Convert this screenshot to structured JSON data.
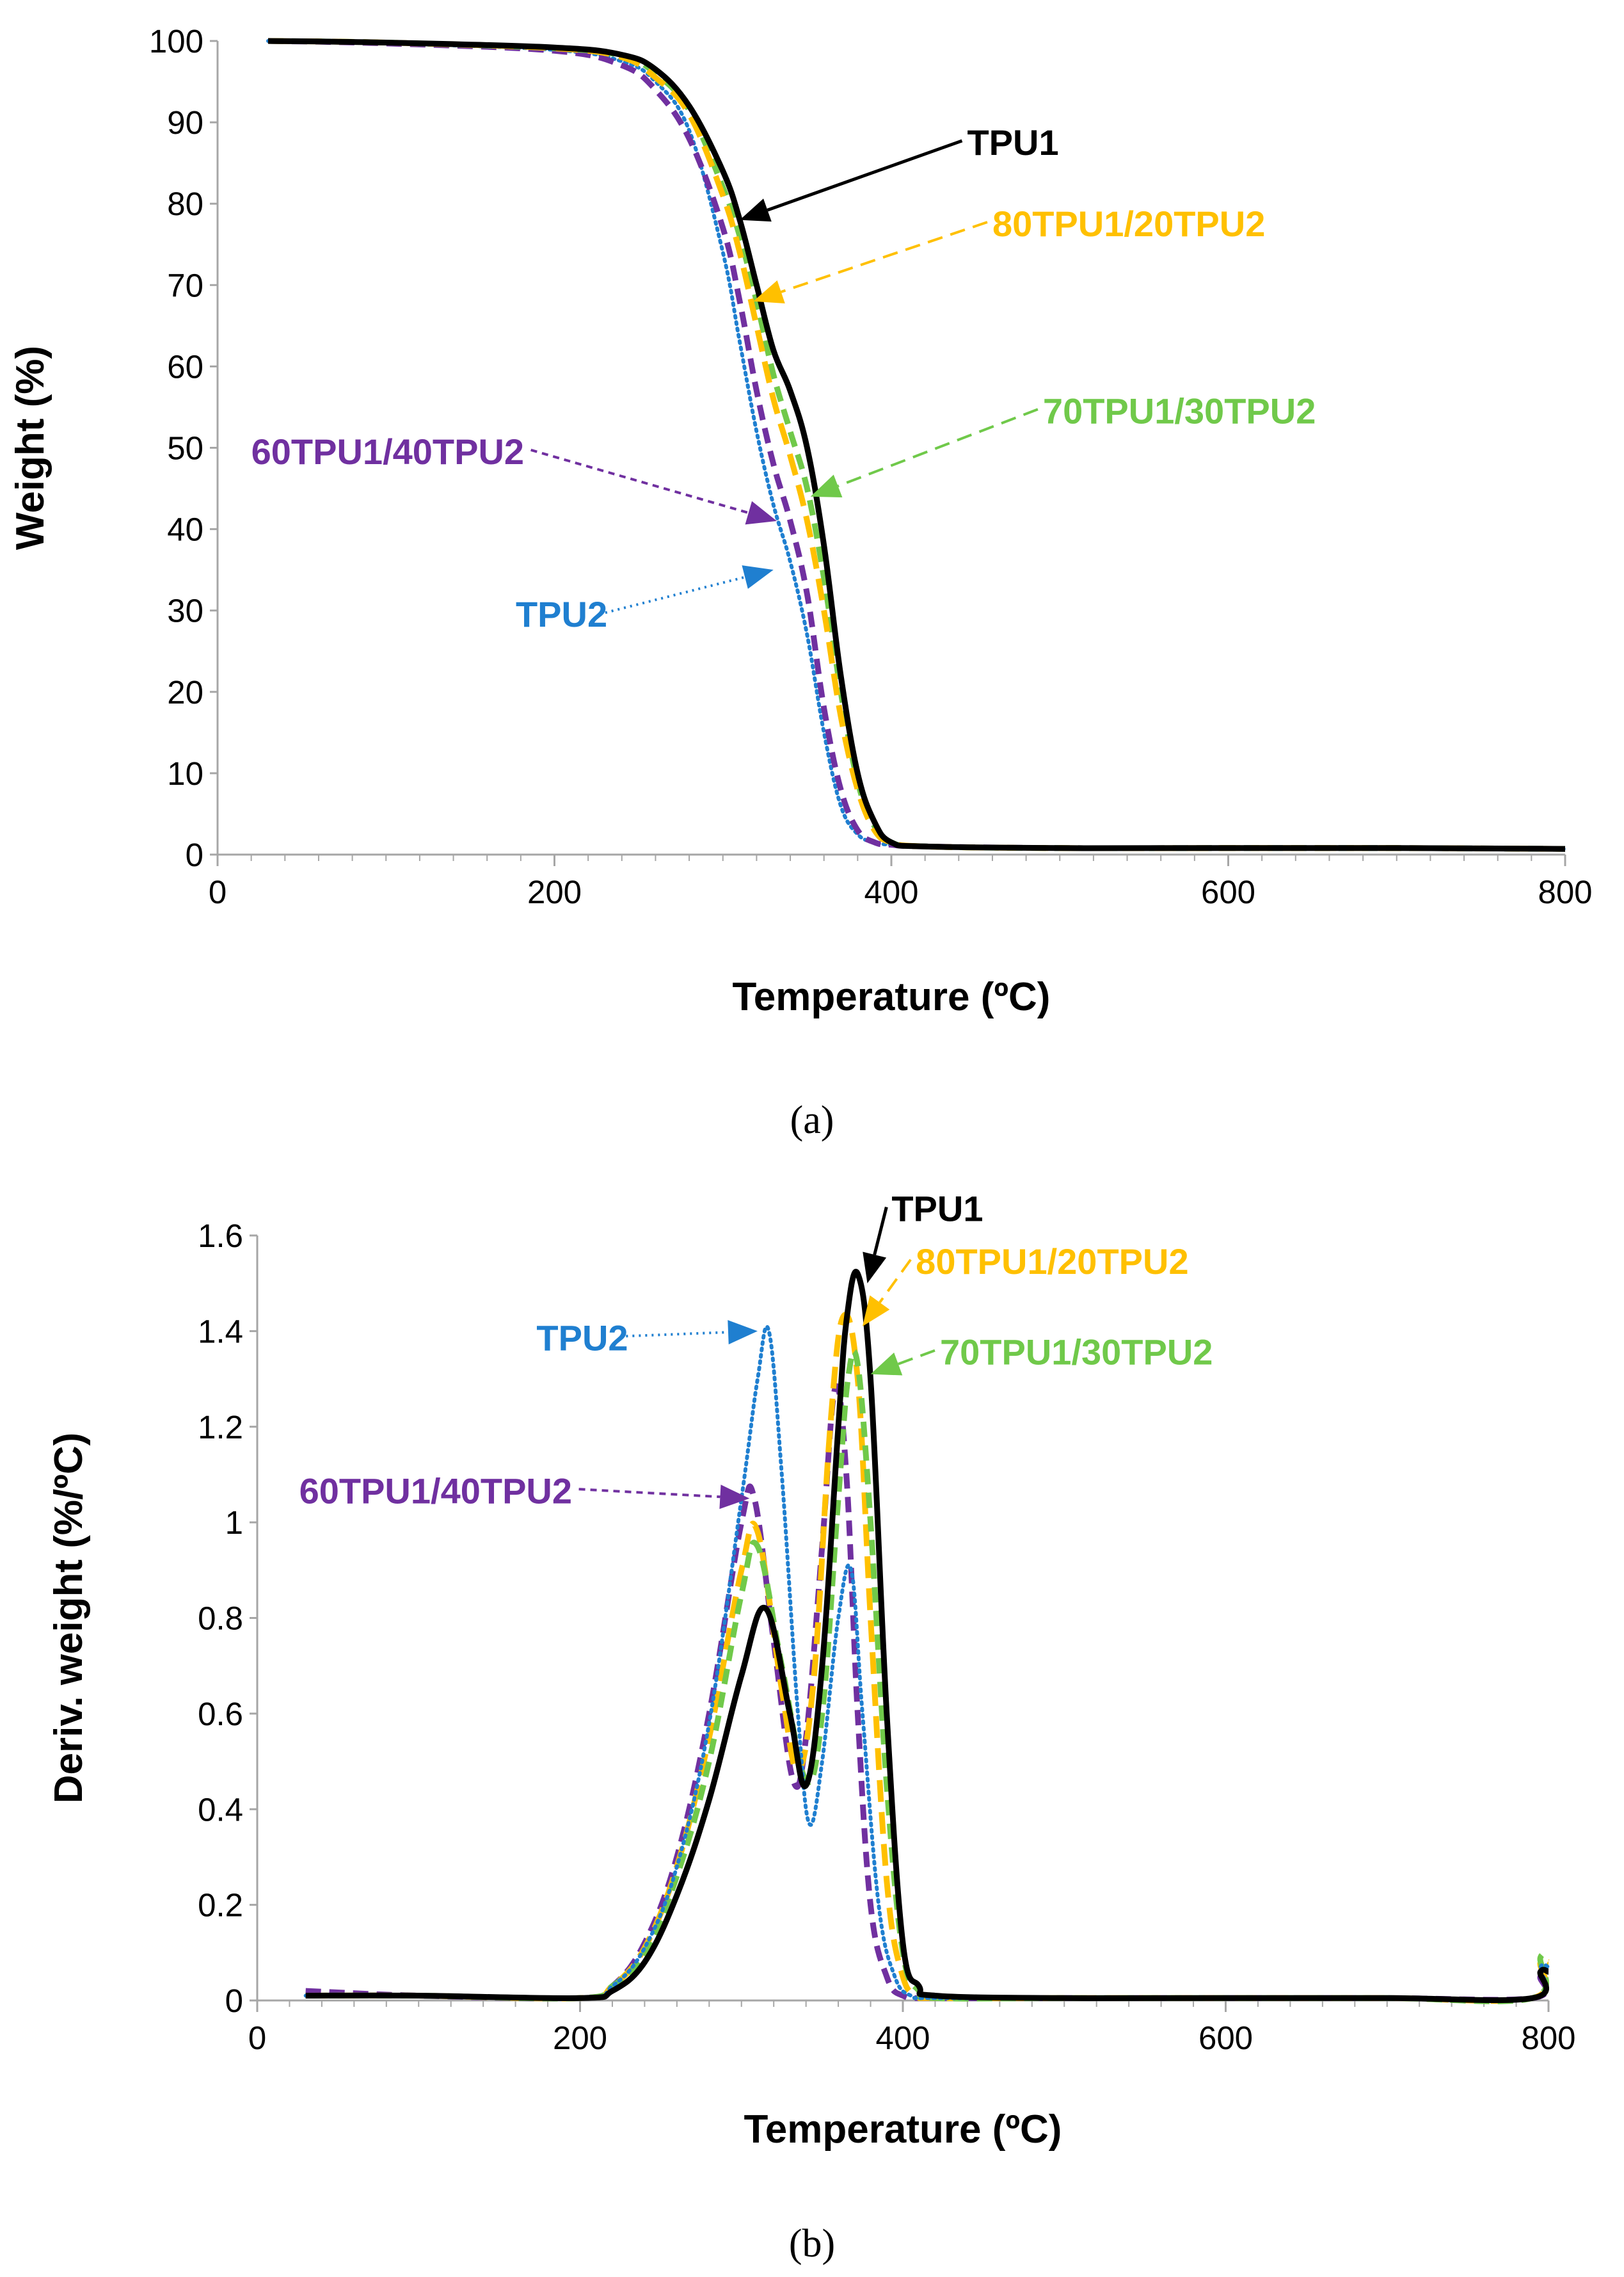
{
  "colors": {
    "TPU1": "#000000",
    "80TPU1/20TPU2": "#FFC000",
    "70TPU1/30TPU2": "#70C94A",
    "60TPU1/40TPU2": "#7030A0",
    "TPU2": "#1F7FD0",
    "axis": "#a6a6a6"
  },
  "chart_data": [
    {
      "type": "line",
      "panel": "(a)",
      "caption": "(a)",
      "xlabel": "Temperature (ºC)",
      "ylabel": "Weight (%)",
      "xlim": [
        0,
        800
      ],
      "ylim": [
        0,
        100
      ],
      "xticks": [
        0,
        200,
        400,
        600,
        800
      ],
      "yticks": [
        0,
        10,
        20,
        30,
        40,
        50,
        60,
        70,
        80,
        90,
        100
      ],
      "grid": false,
      "series": [
        {
          "name": "TPU1",
          "dash": "solid",
          "x": [
            30,
            100,
            200,
            240,
            260,
            280,
            300,
            310,
            320,
            330,
            340,
            350,
            360,
            370,
            380,
            390,
            400,
            420,
            500,
            600,
            700,
            800
          ],
          "y": [
            100,
            99.8,
            99.2,
            98.3,
            96.5,
            92,
            84,
            78,
            70,
            62,
            57,
            50,
            38,
            22,
            10,
            4,
            1.5,
            1.0,
            0.8,
            0.8,
            0.8,
            0.7
          ]
        },
        {
          "name": "80TPU1/20TPU2",
          "dash": "longdash",
          "x": [
            30,
            100,
            200,
            240,
            260,
            280,
            300,
            310,
            320,
            330,
            340,
            350,
            360,
            370,
            380,
            390,
            400,
            420,
            500,
            600,
            700,
            800
          ],
          "y": [
            100,
            99.8,
            99.1,
            98,
            95.5,
            91,
            81,
            74,
            65,
            56,
            49,
            41,
            30,
            17,
            8,
            3,
            1.5,
            1.0,
            0.8,
            0.8,
            0.8,
            0.7
          ]
        },
        {
          "name": "70TPU1/30TPU2",
          "dash": "dash",
          "x": [
            30,
            100,
            200,
            240,
            260,
            280,
            300,
            310,
            320,
            330,
            340,
            350,
            360,
            370,
            380,
            390,
            400,
            420,
            500,
            600,
            700,
            800
          ],
          "y": [
            100,
            99.8,
            99.1,
            98.2,
            96,
            91.5,
            82,
            76,
            68,
            59,
            52,
            45,
            34,
            20,
            9,
            3.5,
            1.5,
            1.0,
            0.8,
            0.8,
            0.8,
            0.7
          ]
        },
        {
          "name": "60TPU1/40TPU2",
          "dash": "dash",
          "x": [
            30,
            100,
            200,
            240,
            260,
            280,
            300,
            310,
            320,
            330,
            340,
            350,
            360,
            370,
            380,
            390,
            400,
            420,
            500,
            600,
            700,
            800
          ],
          "y": [
            100,
            99.7,
            98.8,
            97,
            94,
            88,
            77,
            68,
            57,
            48,
            41,
            32,
            18,
            8,
            3,
            1.5,
            1.2,
            1.0,
            0.8,
            0.8,
            0.8,
            0.7
          ]
        },
        {
          "name": "TPU2",
          "dash": "dot",
          "x": [
            30,
            100,
            200,
            240,
            260,
            280,
            300,
            310,
            320,
            330,
            340,
            350,
            360,
            370,
            380,
            390,
            400,
            420,
            500,
            600,
            700,
            800
          ],
          "y": [
            100,
            99.7,
            98.9,
            97.5,
            95,
            89,
            74,
            63,
            52,
            43,
            36,
            27,
            15,
            6,
            2.5,
            1.5,
            1.2,
            1.0,
            0.8,
            0.8,
            0.8,
            0.7
          ]
        }
      ],
      "annotations": [
        {
          "series": "TPU1",
          "text": "TPU1",
          "label_at": [
            445,
            86
          ],
          "point": [
            310,
            78
          ],
          "line": "solid"
        },
        {
          "series": "80TPU1/20TPU2",
          "text": "80TPU1/20TPU2",
          "label_at": [
            460,
            76
          ],
          "point": [
            318,
            68
          ],
          "line": "dash"
        },
        {
          "series": "70TPU1/30TPU2",
          "text": "70TPU1/30TPU2",
          "label_at": [
            490,
            53
          ],
          "point": [
            352,
            44
          ],
          "line": "dash"
        },
        {
          "series": "60TPU1/40TPU2",
          "text": "60TPU1/40TPU2",
          "label_at": [
            20,
            48
          ],
          "point": [
            332,
            41
          ],
          "line": "shortdash"
        },
        {
          "series": "TPU2",
          "text": "TPU2",
          "label_at": [
            177,
            28
          ],
          "point": [
            330,
            35
          ],
          "line": "dot"
        }
      ]
    },
    {
      "type": "line",
      "panel": "(b)",
      "caption": "(b)",
      "xlabel": "Temperature (ºC)",
      "ylabel": "Deriv. weight (%/ºC)",
      "xlim": [
        0,
        800
      ],
      "ylim": [
        0,
        1.6
      ],
      "xticks": [
        0,
        200,
        400,
        600,
        800
      ],
      "yticks": [
        0,
        0.2,
        0.4,
        0.6,
        0.8,
        1,
        1.2,
        1.4,
        1.6
      ],
      "ytick_labels": [
        "0",
        "0.2",
        "0.4",
        "0.6",
        "0.8",
        "1",
        "1.2",
        "1.4",
        "1.6"
      ],
      "grid": false,
      "series": [
        {
          "name": "TPU1",
          "dash": "solid",
          "x": [
            30,
            100,
            200,
            220,
            240,
            260,
            280,
            300,
            315,
            330,
            340,
            350,
            360,
            365,
            372,
            380,
            390,
            400,
            410,
            420,
            500,
            600,
            700,
            790,
            795,
            800
          ],
          "y": [
            0.01,
            0.01,
            0.005,
            0.02,
            0.08,
            0.22,
            0.42,
            0.68,
            0.82,
            0.6,
            0.45,
            0.7,
            1.2,
            1.42,
            1.52,
            1.3,
            0.6,
            0.12,
            0.03,
            0.01,
            0.005,
            0.005,
            0.005,
            0.005,
            0.06,
            0.06
          ]
        },
        {
          "name": "80TPU1/20TPU2",
          "dash": "longdash",
          "x": [
            30,
            100,
            200,
            220,
            240,
            260,
            280,
            300,
            310,
            325,
            335,
            345,
            355,
            363,
            372,
            380,
            390,
            400,
            410,
            420,
            500,
            600,
            700,
            790,
            795,
            800
          ],
          "y": [
            0.01,
            0.01,
            0.005,
            0.03,
            0.11,
            0.28,
            0.55,
            0.9,
            0.98,
            0.65,
            0.48,
            0.68,
            1.2,
            1.43,
            1.3,
            0.8,
            0.25,
            0.05,
            0.01,
            0.005,
            0.005,
            0.005,
            0.005,
            0.005,
            0.08,
            0.08
          ]
        },
        {
          "name": "70TPU1/30TPU2",
          "dash": "dash",
          "x": [
            30,
            100,
            200,
            220,
            240,
            260,
            280,
            300,
            310,
            325,
            340,
            350,
            360,
            366,
            372,
            380,
            390,
            400,
            410,
            420,
            500,
            600,
            700,
            790,
            795,
            800
          ],
          "y": [
            0.01,
            0.01,
            0.005,
            0.03,
            0.1,
            0.26,
            0.5,
            0.85,
            0.95,
            0.7,
            0.46,
            0.6,
            1.05,
            1.3,
            1.33,
            1.0,
            0.45,
            0.1,
            0.02,
            0.005,
            0.005,
            0.005,
            0.005,
            0.005,
            0.09,
            0.09
          ]
        },
        {
          "name": "60TPU1/40TPU2",
          "dash": "dash",
          "x": [
            30,
            100,
            200,
            220,
            240,
            260,
            280,
            300,
            308,
            320,
            332,
            340,
            350,
            358,
            365,
            372,
            380,
            390,
            400,
            420,
            500,
            600,
            700,
            790,
            795,
            800
          ],
          "y": [
            0.02,
            0.01,
            0.005,
            0.03,
            0.12,
            0.3,
            0.6,
            1.0,
            1.05,
            0.75,
            0.46,
            0.55,
            0.95,
            1.28,
            1.1,
            0.6,
            0.2,
            0.05,
            0.01,
            0.005,
            0.005,
            0.005,
            0.005,
            0.005,
            0.05,
            0.05
          ]
        },
        {
          "name": "TPU2",
          "dash": "dot",
          "x": [
            30,
            100,
            200,
            220,
            240,
            260,
            280,
            300,
            310,
            317,
            325,
            335,
            342,
            350,
            360,
            368,
            375,
            385,
            395,
            405,
            420,
            500,
            600,
            700,
            790,
            795,
            800
          ],
          "y": [
            0.01,
            0.01,
            0.005,
            0.03,
            0.11,
            0.28,
            0.58,
            1.05,
            1.3,
            1.4,
            1.1,
            0.6,
            0.37,
            0.5,
            0.8,
            0.9,
            0.6,
            0.2,
            0.05,
            0.01,
            0.005,
            0.005,
            0.005,
            0.005,
            0.005,
            0.07,
            0.07
          ]
        }
      ],
      "annotations": [
        {
          "series": "TPU1",
          "text": "TPU1",
          "label_at": [
            393,
            1.63
          ],
          "point": [
            378,
            1.5
          ],
          "line": "solid"
        },
        {
          "series": "80TPU1/20TPU2",
          "text": "80TPU1/20TPU2",
          "label_at": [
            408,
            1.52
          ],
          "point": [
            375,
            1.41
          ],
          "line": "dash"
        },
        {
          "series": "70TPU1/30TPU2",
          "text": "70TPU1/30TPU2",
          "label_at": [
            423,
            1.33
          ],
          "point": [
            380,
            1.31
          ],
          "line": "dash"
        },
        {
          "series": "60TPU1/40TPU2",
          "text": "60TPU1/40TPU2",
          "label_at": [
            26,
            1.04
          ],
          "point": [
            305,
            1.05
          ],
          "line": "shortdash"
        },
        {
          "series": "TPU2",
          "text": "TPU2",
          "label_at": [
            173,
            1.36
          ],
          "point": [
            310,
            1.4
          ],
          "line": "dot"
        }
      ]
    }
  ]
}
